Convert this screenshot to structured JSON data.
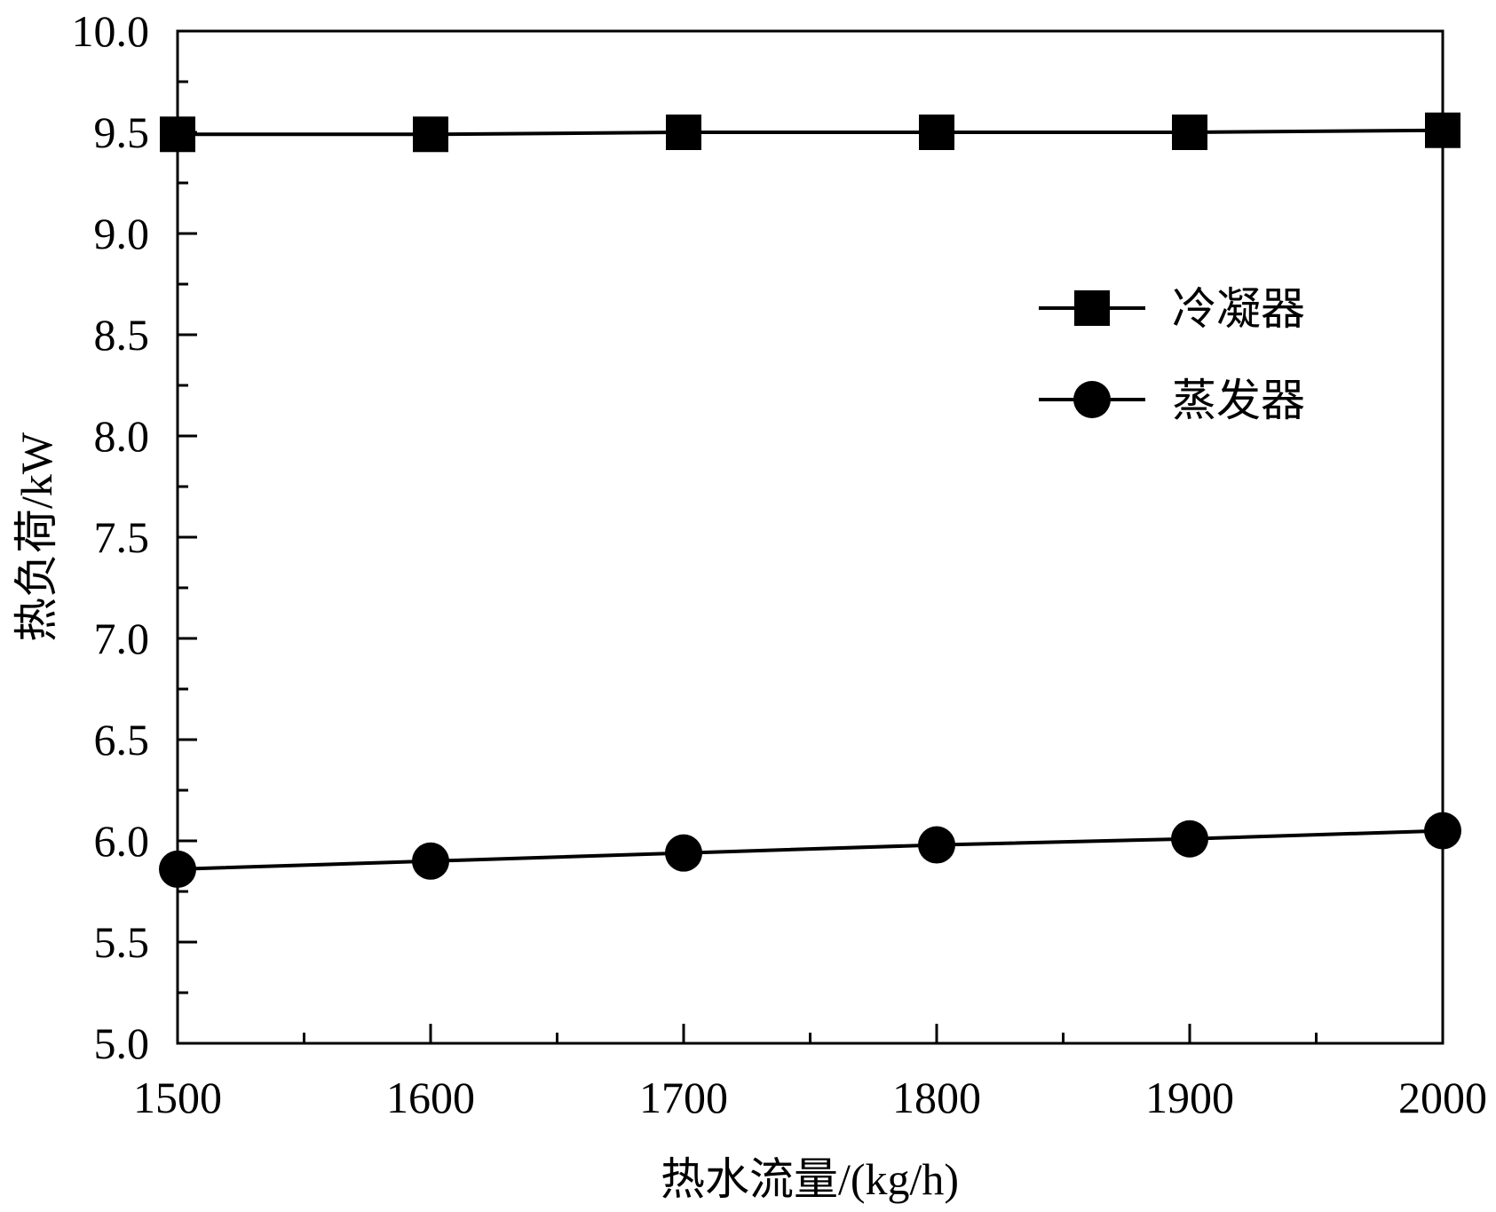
{
  "chart_data": {
    "type": "line",
    "title": "",
    "xlabel": "热水流量/(kg/h)",
    "ylabel": "热负荷/kW",
    "x": [
      1500,
      1600,
      1700,
      1800,
      1900,
      2000
    ],
    "xlim": [
      1500,
      2000
    ],
    "ylim": [
      5.0,
      10.0
    ],
    "xticks": [
      "1500",
      "1600",
      "1700",
      "1800",
      "1900",
      "2000"
    ],
    "yticks": [
      "5.0",
      "5.5",
      "6.0",
      "6.5",
      "7.0",
      "7.5",
      "8.0",
      "8.5",
      "9.0",
      "9.5",
      "10.0"
    ],
    "grid": false,
    "legend_position": "upper-right",
    "series": [
      {
        "name": "冷凝器",
        "marker": "square",
        "values": [
          9.49,
          9.49,
          9.5,
          9.5,
          9.5,
          9.51
        ]
      },
      {
        "name": "蒸发器",
        "marker": "circle",
        "values": [
          5.86,
          5.9,
          5.94,
          5.98,
          6.01,
          6.05
        ]
      }
    ],
    "colors": {
      "line": "#000000",
      "marker": "#000000"
    }
  }
}
